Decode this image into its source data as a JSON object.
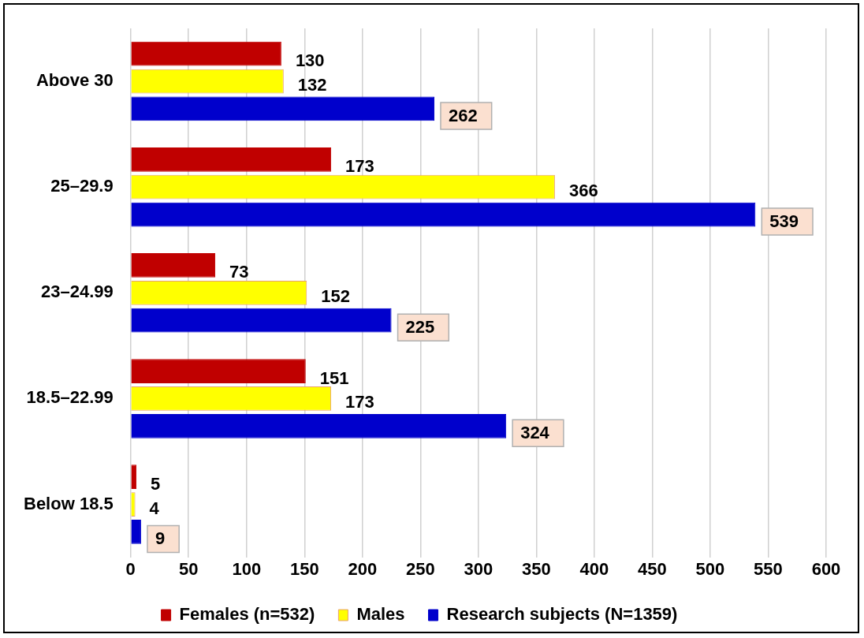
{
  "chart_data": {
    "type": "bar",
    "orientation": "horizontal",
    "categories": [
      "Above 30",
      "25–29.9",
      "23–24.99",
      "18.5–22.99",
      "Below 18.5"
    ],
    "series": [
      {
        "name": "Females (n=532)",
        "color": "#c00000",
        "values": [
          130,
          173,
          73,
          151,
          5
        ]
      },
      {
        "name": "Males",
        "color": "#ffff00",
        "values": [
          132,
          366,
          152,
          173,
          4
        ]
      },
      {
        "name": "Research subjects (N=1359)",
        "color": "#0000cc",
        "values": [
          262,
          539,
          225,
          324,
          9
        ]
      }
    ],
    "xlim": [
      0,
      600
    ],
    "xticks": [
      0,
      50,
      100,
      150,
      200,
      250,
      300,
      350,
      400,
      450,
      500,
      550,
      600
    ],
    "grid": "x",
    "legend": "bottom",
    "data_labels": true
  }
}
